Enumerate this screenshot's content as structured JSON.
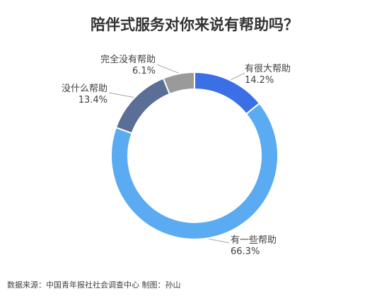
{
  "chart_data": {
    "type": "pie",
    "title": "陪伴式服务对你来说有帮助吗？",
    "slices": [
      {
        "label": "有很大帮助",
        "value": 14.2,
        "value_text": "14.2%",
        "color": "#3b6fe5"
      },
      {
        "label": "有一些帮助",
        "value": 66.3,
        "value_text": "66.3%",
        "color": "#5aabf1"
      },
      {
        "label": "没什么帮助",
        "value": 13.4,
        "value_text": "13.4%",
        "color": "#5a6e96"
      },
      {
        "label": "完全没有帮助",
        "value": 6.1,
        "value_text": "6.1%",
        "color": "#9a9a9a"
      }
    ],
    "donut": true,
    "start": "top, clockwise"
  },
  "footer": {
    "source": "数据来源：中国青年报社社会调查中心 制图：孙山"
  }
}
